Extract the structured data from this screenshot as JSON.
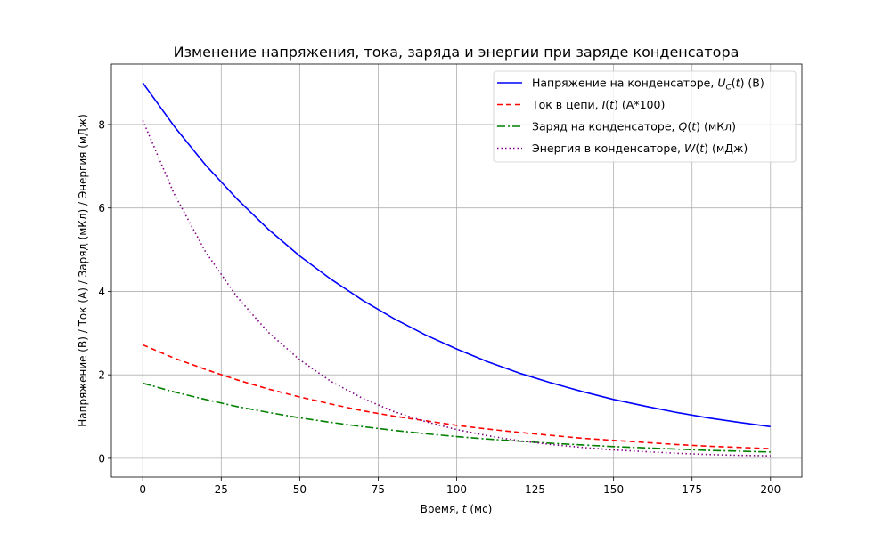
{
  "chart_data": {
    "type": "line",
    "title": "Изменение напряжения, тока, заряда и энергии при заряде конденсатора",
    "xlabel_prefix": "Время, ",
    "xlabel_var": "t",
    "xlabel_suffix": " (мс)",
    "ylabel": "Напряжение (В) / Ток (А) / Заряд (мКл) / Энергия (мДж)",
    "xlim": [
      -10,
      210
    ],
    "ylim": [
      -0.45,
      9.45
    ],
    "x_ticks": [
      0,
      25,
      50,
      75,
      100,
      125,
      150,
      175,
      200
    ],
    "y_ticks": [
      0,
      2,
      4,
      6,
      8
    ],
    "grid": true,
    "legend_position": "upper right",
    "x": [
      0,
      10,
      20,
      30,
      40,
      50,
      60,
      70,
      80,
      90,
      100,
      110,
      120,
      130,
      140,
      150,
      160,
      170,
      180,
      190,
      200
    ],
    "series": [
      {
        "color": "#0000ff",
        "dash": "",
        "legend_parts": [
          {
            "t": "Напряжение на конденсаторе, ",
            "it": false
          },
          {
            "t": "U",
            "it": true
          },
          {
            "t": "C",
            "it": true,
            "sub": true
          },
          {
            "t": "(",
            "it": false
          },
          {
            "t": "t",
            "it": true
          },
          {
            "t": ") (В)",
            "it": false
          }
        ],
        "values": [
          9.0,
          7.96,
          7.03,
          6.22,
          5.49,
          4.85,
          4.29,
          3.79,
          3.35,
          2.96,
          2.62,
          2.31,
          2.04,
          1.81,
          1.6,
          1.41,
          1.25,
          1.1,
          0.97,
          0.86,
          0.76
        ]
      },
      {
        "color": "#ff0000",
        "dash": "6,4",
        "legend_parts": [
          {
            "t": "Ток в цепи, ",
            "it": false
          },
          {
            "t": "I",
            "it": true
          },
          {
            "t": "(",
            "it": false
          },
          {
            "t": "t",
            "it": true
          },
          {
            "t": ") (А*100)",
            "it": false
          }
        ],
        "values": [
          2.72,
          2.4,
          2.13,
          1.88,
          1.66,
          1.47,
          1.3,
          1.14,
          1.01,
          0.9,
          0.79,
          0.7,
          0.62,
          0.55,
          0.48,
          0.43,
          0.38,
          0.33,
          0.29,
          0.26,
          0.23
        ]
      },
      {
        "color": "#008000",
        "dash": "9,3,2,3",
        "legend_parts": [
          {
            "t": "Заряд на конденсаторе, ",
            "it": false
          },
          {
            "t": "Q",
            "it": true
          },
          {
            "t": "(",
            "it": false
          },
          {
            "t": "t",
            "it": true
          },
          {
            "t": ") (мКл)",
            "it": false
          }
        ],
        "values": [
          1.8,
          1.59,
          1.41,
          1.24,
          1.1,
          0.97,
          0.86,
          0.76,
          0.67,
          0.59,
          0.52,
          0.46,
          0.41,
          0.36,
          0.32,
          0.28,
          0.25,
          0.22,
          0.19,
          0.17,
          0.15
        ]
      },
      {
        "color": "#800080",
        "dash": "1.5,3",
        "legend_parts": [
          {
            "t": "Энергия в конденсаторе, ",
            "it": false
          },
          {
            "t": "W",
            "it": true
          },
          {
            "t": "(",
            "it": false
          },
          {
            "t": "t",
            "it": true
          },
          {
            "t": ") (мДж)",
            "it": false
          }
        ],
        "values": [
          8.1,
          6.34,
          4.95,
          3.87,
          3.02,
          2.36,
          1.84,
          1.44,
          1.12,
          0.88,
          0.69,
          0.54,
          0.42,
          0.33,
          0.26,
          0.2,
          0.16,
          0.12,
          0.09,
          0.07,
          0.06
        ]
      }
    ]
  }
}
